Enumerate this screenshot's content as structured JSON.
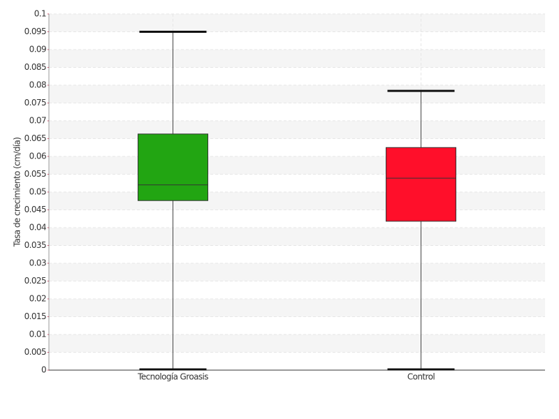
{
  "chart_data": {
    "type": "box",
    "ylabel": "Tasa de crecimiento (cm/día)",
    "categories": [
      "Tecnología Groasis",
      "Control"
    ],
    "boxes": [
      {
        "min": 0,
        "q1": 0.0476,
        "median": 0.052,
        "q3": 0.0663,
        "max": 0.095,
        "color": "#22a512"
      },
      {
        "min": 0,
        "q1": 0.0418,
        "median": 0.0539,
        "q3": 0.0625,
        "max": 0.0784,
        "color": "#ff0f2a"
      }
    ],
    "ylim": [
      0,
      0.1
    ],
    "yticks": [
      0,
      0.005,
      0.01,
      0.015,
      0.02,
      0.025,
      0.03,
      0.035,
      0.04,
      0.045,
      0.05,
      0.055,
      0.06,
      0.065,
      0.07,
      0.075,
      0.08,
      0.085,
      0.09,
      0.095,
      0.1
    ],
    "grid": true
  }
}
